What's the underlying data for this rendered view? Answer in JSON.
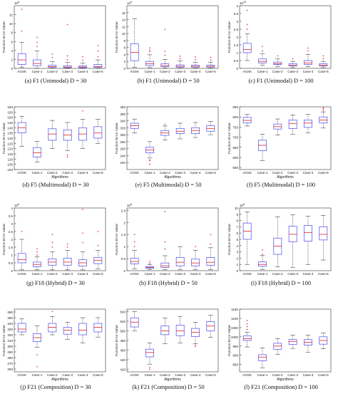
{
  "colors": {
    "box": "#4a4af0",
    "median": "#e02020",
    "outlier": "#e02020",
    "whisker": "#222222",
    "axis": "#333333"
  },
  "chart_data": [
    {
      "type": "boxplot",
      "caption": "(a) F1 (Unimodal) D = 30",
      "categories": [
        "AGSK",
        "Case-1",
        "Case-2",
        "Case-3",
        "Case-4",
        "Case-5"
      ],
      "ylabel": "Function Error Value",
      "xlabel": "",
      "exponent": "10^8",
      "ylim": [
        0,
        14
      ],
      "yticks": [
        0,
        2,
        4,
        6,
        8,
        10,
        12
      ],
      "boxes": [
        {
          "low": 0.2,
          "q1": 0.9,
          "median": 1.9,
          "q3": 3.3,
          "high": 5.8,
          "outliers": [
            8.3,
            13.2
          ]
        },
        {
          "low": 0.0,
          "q1": 0.6,
          "median": 1.1,
          "q3": 1.9,
          "high": 3.9,
          "outliers": [
            4.9,
            5.8,
            6.9
          ]
        },
        {
          "low": 0.0,
          "q1": 0.2,
          "median": 0.4,
          "q3": 0.7,
          "high": 1.5,
          "outliers": [
            2.4,
            3.2
          ]
        },
        {
          "low": 0.0,
          "q1": 0.15,
          "median": 0.3,
          "q3": 0.6,
          "high": 1.3,
          "outliers": [
            1.9,
            2.8,
            9.8
          ]
        },
        {
          "low": 0.0,
          "q1": 0.15,
          "median": 0.3,
          "q3": 0.55,
          "high": 1.2,
          "outliers": [
            1.8,
            2.6
          ]
        },
        {
          "low": 0.0,
          "q1": 0.2,
          "median": 0.4,
          "q3": 0.9,
          "high": 1.9,
          "outliers": [
            2.6,
            3.9,
            5.1
          ]
        }
      ]
    },
    {
      "type": "boxplot",
      "caption": "(b) F1 (Unimodal) D = 50",
      "categories": [
        "AGSK",
        "Case-1",
        "Case-2",
        "Case-3",
        "Case-4",
        "Case-5"
      ],
      "ylabel": "Function Error Value",
      "xlabel": "",
      "exponent": "10^9",
      "ylim": [
        0,
        18
      ],
      "yticks": [
        0,
        2,
        4,
        6,
        8,
        10,
        12,
        14,
        16
      ],
      "boxes": [
        {
          "low": 0.3,
          "q1": 2.2,
          "median": 4.6,
          "q3": 7.1,
          "high": 14.3,
          "outliers": []
        },
        {
          "low": 0.2,
          "q1": 0.8,
          "median": 1.3,
          "q3": 2.0,
          "high": 3.9,
          "outliers": [
            4.8,
            5.2,
            5.9
          ]
        },
        {
          "low": 0.1,
          "q1": 0.5,
          "median": 0.8,
          "q3": 1.3,
          "high": 2.6,
          "outliers": [
            3.8,
            4.9,
            11.2
          ]
        },
        {
          "low": 0.0,
          "q1": 0.3,
          "median": 0.6,
          "q3": 1.0,
          "high": 2.2,
          "outliers": [
            2.8,
            3.5
          ]
        },
        {
          "low": 0.0,
          "q1": 0.3,
          "median": 0.6,
          "q3": 0.9,
          "high": 1.8,
          "outliers": [
            2.5,
            3.3
          ]
        },
        {
          "low": 0.0,
          "q1": 0.3,
          "median": 0.6,
          "q3": 0.9,
          "high": 1.8,
          "outliers": [
            2.4,
            3.2
          ]
        }
      ]
    },
    {
      "type": "boxplot",
      "caption": "(c) F1 (Unimodal) D = 100",
      "categories": [
        "AGSK",
        "Case-1",
        "Case-2",
        "Case-3",
        "Case-4",
        "Case-5"
      ],
      "ylabel": "Function Error Value",
      "xlabel": "",
      "exponent": "10^10",
      "ylim": [
        0,
        4
      ],
      "yticks": [
        0,
        0.5,
        1,
        1.5,
        2,
        2.5,
        3,
        3.5,
        4
      ],
      "boxes": [
        {
          "low": 0.5,
          "q1": 1.0,
          "median": 1.2,
          "q3": 1.6,
          "high": 2.2,
          "outliers": [
            2.5,
            2.8,
            3.7
          ]
        },
        {
          "low": 0.2,
          "q1": 0.35,
          "median": 0.45,
          "q3": 0.6,
          "high": 0.95,
          "outliers": [
            1.1,
            1.4
          ]
        },
        {
          "low": 0.1,
          "q1": 0.25,
          "median": 0.3,
          "q3": 0.4,
          "high": 0.6,
          "outliers": [
            0.8
          ]
        },
        {
          "low": 0.05,
          "q1": 0.15,
          "median": 0.2,
          "q3": 0.3,
          "high": 0.45,
          "outliers": [
            0.6
          ]
        },
        {
          "low": 0.1,
          "q1": 0.25,
          "median": 0.35,
          "q3": 0.5,
          "high": 0.9,
          "outliers": [
            1.1,
            1.3
          ]
        },
        {
          "low": 0.05,
          "q1": 0.15,
          "median": 0.2,
          "q3": 0.3,
          "high": 0.45,
          "outliers": [
            0.6,
            0.8
          ]
        }
      ]
    },
    {
      "type": "boxplot",
      "caption": "(d) F5 (Multimodal) D = 30",
      "categories": [
        "AGSK",
        "Case-1",
        "Case-2",
        "Case-3",
        "Case-4",
        "Case-5"
      ],
      "ylabel": "Function Error Value",
      "xlabel": "Algorithms",
      "exponent": "",
      "ylim": [
        100,
        160
      ],
      "yticks": [
        100,
        105,
        110,
        115,
        120,
        125,
        130,
        135,
        140,
        145,
        150,
        155,
        160
      ],
      "boxes": [
        {
          "low": 122,
          "q1": 135,
          "median": 140,
          "q3": 145,
          "high": 151,
          "outliers": []
        },
        {
          "low": 107,
          "q1": 112,
          "median": 116,
          "q3": 121,
          "high": 127,
          "outliers": []
        },
        {
          "low": 120,
          "q1": 128,
          "median": 134,
          "q3": 139,
          "high": 147,
          "outliers": []
        },
        {
          "low": 118,
          "q1": 128,
          "median": 133,
          "q3": 138,
          "high": 145,
          "outliers": [
            114,
            112
          ]
        },
        {
          "low": 120,
          "q1": 128,
          "median": 134,
          "q3": 140,
          "high": 148,
          "outliers": [
            156
          ]
        },
        {
          "low": 125,
          "q1": 130,
          "median": 135,
          "q3": 141,
          "high": 148,
          "outliers": []
        }
      ]
    },
    {
      "type": "boxplot",
      "caption": "(e) F5 (Multimodal) D = 50",
      "categories": [
        "AGSK",
        "Case-1",
        "Case-2",
        "Case-3",
        "Case-4",
        "Case-5"
      ],
      "ylabel": "Function Error Value",
      "xlabel": "Algorithms",
      "exponent": "",
      "ylim": [
        200,
        380
      ],
      "yticks": [
        220,
        240,
        260,
        280,
        300,
        320,
        340,
        360,
        380
      ],
      "boxes": [
        {
          "low": 305,
          "q1": 318,
          "median": 326,
          "q3": 333,
          "high": 345,
          "outliers": []
        },
        {
          "low": 233,
          "q1": 248,
          "median": 256,
          "q3": 264,
          "high": 280,
          "outliers": [
            228,
            225,
            215
          ]
        },
        {
          "low": 285,
          "q1": 298,
          "median": 305,
          "q3": 312,
          "high": 325,
          "outliers": [
            330
          ]
        },
        {
          "low": 288,
          "q1": 303,
          "median": 310,
          "q3": 318,
          "high": 333,
          "outliers": []
        },
        {
          "low": 292,
          "q1": 303,
          "median": 312,
          "q3": 320,
          "high": 335,
          "outliers": []
        },
        {
          "low": 300,
          "q1": 310,
          "median": 318,
          "q3": 326,
          "high": 338,
          "outliers": []
        }
      ]
    },
    {
      "type": "boxplot",
      "caption": "(f) F5 (Multimodal) D = 100",
      "categories": [
        "AGSK",
        "Case-1",
        "Case-2",
        "Case-3",
        "Case-4",
        "Case-5"
      ],
      "ylabel": "Function Error Value",
      "xlabel": "Algorithms",
      "exponent": "",
      "ylim": [
        540,
        850
      ],
      "yticks": [
        550,
        600,
        650,
        700,
        750,
        800,
        850
      ],
      "boxes": [
        {
          "low": 755,
          "q1": 770,
          "median": 783,
          "q3": 798,
          "high": 812,
          "outliers": []
        },
        {
          "low": 585,
          "q1": 633,
          "median": 660,
          "q3": 685,
          "high": 715,
          "outliers": []
        },
        {
          "low": 710,
          "q1": 740,
          "median": 752,
          "q3": 765,
          "high": 790,
          "outliers": []
        },
        {
          "low": 715,
          "q1": 742,
          "median": 768,
          "q3": 785,
          "high": 810,
          "outliers": []
        },
        {
          "low": 722,
          "q1": 748,
          "median": 770,
          "q3": 785,
          "high": 812,
          "outliers": []
        },
        {
          "low": 745,
          "q1": 770,
          "median": 785,
          "q3": 800,
          "high": 825,
          "outliers": [
            832,
            840,
            845
          ]
        }
      ]
    },
    {
      "type": "boxplot",
      "caption": "(g) F18 (Hybrid) D = 30",
      "categories": [
        "AGSK",
        "Case-1",
        "Case-2",
        "Case-3",
        "Case-4",
        "Case-5"
      ],
      "ylabel": "Function Error Value",
      "xlabel": "",
      "exponent": "10^6",
      "ylim": [
        0,
        4
      ],
      "yticks": [
        0,
        0.5,
        1,
        1.5,
        2,
        2.5,
        3,
        3.5,
        4
      ],
      "boxes": [
        {
          "low": 0.05,
          "q1": 0.5,
          "median": 0.7,
          "q3": 1.1,
          "high": 2.0,
          "outliers": [
            2.5
          ]
        },
        {
          "low": 0.05,
          "q1": 0.25,
          "median": 0.4,
          "q3": 0.55,
          "high": 0.9,
          "outliers": [
            1.0,
            1.2,
            1.4
          ]
        },
        {
          "low": 0.05,
          "q1": 0.35,
          "median": 0.55,
          "q3": 0.75,
          "high": 1.2,
          "outliers": [
            1.5,
            1.8,
            2.3
          ]
        },
        {
          "low": 0.05,
          "q1": 0.35,
          "median": 0.55,
          "q3": 0.8,
          "high": 1.3,
          "outliers": [
            1.5,
            1.7
          ]
        },
        {
          "low": 0.05,
          "q1": 0.3,
          "median": 0.5,
          "q3": 0.7,
          "high": 1.2,
          "outliers": [
            1.8,
            2.4,
            3.9
          ]
        },
        {
          "low": 0.1,
          "q1": 0.45,
          "median": 0.65,
          "q3": 0.85,
          "high": 1.3,
          "outliers": [
            1.6,
            2.5
          ]
        }
      ]
    },
    {
      "type": "boxplot",
      "caption": "(h) F18 (Hybrid) D = 50",
      "categories": [
        "AGSK",
        "Case-1",
        "Case-2",
        "Case-3",
        "Case-4",
        "Case-5"
      ],
      "ylabel": "Function Error Value",
      "xlabel": "",
      "exponent": "10^6",
      "ylim": [
        0,
        2.6
      ],
      "yticks": [
        0,
        0.5,
        1,
        1.5,
        2,
        2.5
      ],
      "boxes": [
        {
          "low": 0.08,
          "q1": 0.28,
          "median": 0.38,
          "q3": 0.52,
          "high": 0.85,
          "outliers": [
            1.0,
            1.2,
            1.5
          ]
        },
        {
          "low": 0.05,
          "q1": 0.1,
          "median": 0.13,
          "q3": 0.17,
          "high": 0.26,
          "outliers": [
            0.3,
            0.38
          ]
        },
        {
          "low": 0.05,
          "q1": 0.13,
          "median": 0.2,
          "q3": 0.32,
          "high": 0.62,
          "outliers": [
            0.9,
            1.2,
            2.45
          ]
        },
        {
          "low": 0.05,
          "q1": 0.2,
          "median": 0.35,
          "q3": 0.55,
          "high": 1.0,
          "outliers": []
        },
        {
          "low": 0.05,
          "q1": 0.2,
          "median": 0.32,
          "q3": 0.48,
          "high": 0.85,
          "outliers": [
            1.0
          ]
        },
        {
          "low": 0.05,
          "q1": 0.22,
          "median": 0.35,
          "q3": 0.55,
          "high": 0.95,
          "outliers": [
            1.1,
            1.5
          ]
        }
      ]
    },
    {
      "type": "boxplot",
      "caption": "(i) F18 (Hybrid) D = 100",
      "categories": [
        "AGSK",
        "Case-1",
        "Case-2",
        "Case-3",
        "Case-4",
        "Case-5"
      ],
      "ylabel": "Function Error Value",
      "xlabel": "",
      "exponent": "10^6",
      "ylim": [
        0,
        10
      ],
      "yticks": [
        0,
        1,
        2,
        3,
        4,
        5,
        6,
        7,
        8,
        9,
        10
      ],
      "boxes": [
        {
          "low": 1.0,
          "q1": 5.0,
          "median": 6.3,
          "q3": 7.6,
          "high": 9.4,
          "outliers": []
        },
        {
          "low": 0.2,
          "q1": 0.7,
          "median": 1.0,
          "q3": 1.4,
          "high": 2.4,
          "outliers": [
            2.6,
            3.3
          ]
        },
        {
          "low": 0.6,
          "q1": 2.6,
          "median": 3.9,
          "q3": 5.2,
          "high": 8.6,
          "outliers": []
        },
        {
          "low": 0.5,
          "q1": 4.6,
          "median": 5.8,
          "q3": 7.1,
          "high": 8.9,
          "outliers": []
        },
        {
          "low": 1.0,
          "q1": 4.7,
          "median": 6.1,
          "q3": 7.2,
          "high": 8.7,
          "outliers": []
        },
        {
          "low": 1.7,
          "q1": 4.9,
          "median": 5.8,
          "q3": 7.0,
          "high": 8.8,
          "outliers": []
        }
      ]
    },
    {
      "type": "boxplot",
      "caption": "(j) F21 (Composition) D = 30",
      "categories": [
        "AGSK",
        "Case-1",
        "Case-2",
        "Case-3",
        "Case-4",
        "Case-5"
      ],
      "ylabel": "Function Error Value",
      "xlabel": "Algorithms",
      "exponent": "",
      "ylim": [
        255,
        365
      ],
      "yticks": [
        260,
        270,
        280,
        290,
        300,
        310,
        320,
        330,
        340,
        350,
        360
      ],
      "boxes": [
        {
          "low": 320,
          "q1": 325,
          "median": 330,
          "q3": 340,
          "high": 348,
          "outliers": []
        },
        {
          "low": 298,
          "q1": 308,
          "median": 315,
          "q3": 322,
          "high": 336,
          "outliers": [
            285,
            264
          ]
        },
        {
          "low": 320,
          "q1": 325,
          "median": 333,
          "q3": 340,
          "high": 352,
          "outliers": [
            361
          ]
        },
        {
          "low": 312,
          "q1": 321,
          "median": 328,
          "q3": 333,
          "high": 342,
          "outliers": []
        },
        {
          "low": 306,
          "q1": 320,
          "median": 328,
          "q3": 340,
          "high": 350,
          "outliers": []
        },
        {
          "low": 316,
          "q1": 325,
          "median": 333,
          "q3": 340,
          "high": 350,
          "outliers": []
        }
      ]
    },
    {
      "type": "boxplot",
      "caption": "(k) F21 (Composition) D = 50",
      "categories": [
        "AGSK",
        "Case-1",
        "Case-2",
        "Case-3",
        "Case-4",
        "Case-5"
      ],
      "ylabel": "Function Error Value",
      "xlabel": "Algorithms",
      "exponent": "",
      "ylim": [
        415,
        545
      ],
      "yticks": [
        420,
        440,
        460,
        480,
        500,
        520,
        540
      ],
      "boxes": [
        {
          "low": 500,
          "q1": 508,
          "median": 518,
          "q3": 527,
          "high": 540,
          "outliers": []
        },
        {
          "low": 431,
          "q1": 446,
          "median": 455,
          "q3": 462,
          "high": 475,
          "outliers": [
            424,
            420
          ]
        },
        {
          "low": 473,
          "q1": 492,
          "median": 500,
          "q3": 510,
          "high": 527,
          "outliers": []
        },
        {
          "low": 475,
          "q1": 490,
          "median": 500,
          "q3": 512,
          "high": 530,
          "outliers": []
        },
        {
          "low": 473,
          "q1": 488,
          "median": 497,
          "q3": 505,
          "high": 518,
          "outliers": [
            470,
            468
          ]
        },
        {
          "low": 487,
          "q1": 500,
          "median": 510,
          "q3": 519,
          "high": 532,
          "outliers": []
        }
      ]
    },
    {
      "type": "boxplot",
      "caption": "(l) F21 (Composition) D = 100",
      "categories": [
        "AGSK",
        "Case-1",
        "Case-2",
        "Case-3",
        "Case-4",
        "Case-5"
      ],
      "ylabel": "Function Error Value",
      "xlabel": "Algorithms",
      "exponent": "",
      "ylim": [
        810,
        1150
      ],
      "yticks": [
        850,
        900,
        950,
        1000,
        1050,
        1100,
        1150
      ],
      "boxes": [
        {
          "low": 945,
          "q1": 980,
          "median": 990,
          "q3": 1005,
          "high": 1025,
          "outliers": [
            1040,
            1055,
            1070,
            1088
          ]
        },
        {
          "low": 832,
          "q1": 870,
          "median": 890,
          "q3": 903,
          "high": 940,
          "outliers": []
        },
        {
          "low": 905,
          "q1": 932,
          "median": 950,
          "q3": 965,
          "high": 990,
          "outliers": []
        },
        {
          "low": 937,
          "q1": 958,
          "median": 975,
          "q3": 985,
          "high": 1010,
          "outliers": []
        },
        {
          "low": 917,
          "q1": 955,
          "median": 970,
          "q3": 985,
          "high": 1010,
          "outliers": []
        },
        {
          "low": 935,
          "q1": 960,
          "median": 980,
          "q3": 1000,
          "high": 1020,
          "outliers": []
        }
      ]
    }
  ]
}
